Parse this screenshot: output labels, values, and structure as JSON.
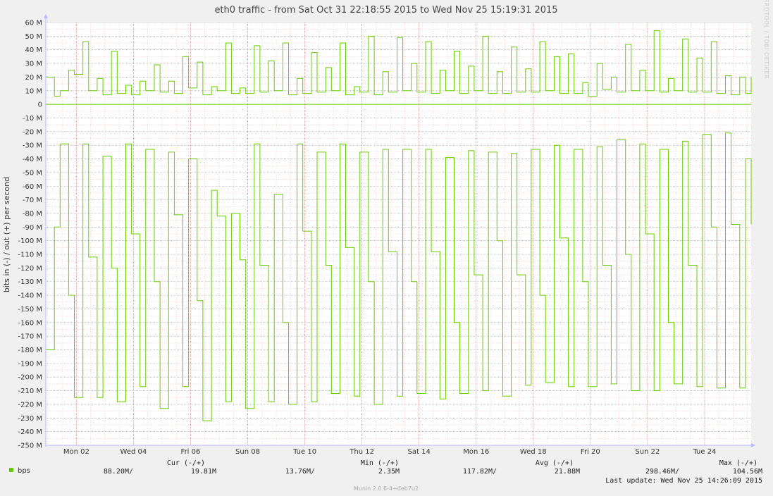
{
  "chart_data": {
    "type": "line",
    "title": "eth0 traffic - from Sat Oct 31 22:18:55 2015 to Wed Nov 25 15:19:31 2015",
    "ylabel": "bits in (-) / out (+) per second",
    "ylim": [
      -250000000,
      60000000
    ],
    "y_ticks": [
      "60 M",
      "50 M",
      "40 M",
      "30 M",
      "20 M",
      "10 M",
      "0",
      "-10 M",
      "-20 M",
      "-30 M",
      "-40 M",
      "-50 M",
      "-60 M",
      "-70 M",
      "-80 M",
      "-90 M",
      "-100 M",
      "-110 M",
      "-120 M",
      "-130 M",
      "-140 M",
      "-150 M",
      "-160 M",
      "-170 M",
      "-180 M",
      "-190 M",
      "-200 M",
      "-210 M",
      "-220 M",
      "-230 M",
      "-240 M",
      "-250 M"
    ],
    "x_ticks": [
      "Mon 02",
      "Wed 04",
      "Fri 06",
      "Sun 08",
      "Tue 10",
      "Thu 12",
      "Sat 14",
      "Mon 16",
      "Wed 18",
      "Fri 20",
      "Sun 22",
      "Tue 24"
    ],
    "grid": true,
    "colors": {
      "series": "#66cc00",
      "grid_minor": "#f4b3b3",
      "grid_major": "#e08a8a",
      "background": "#ffffff",
      "page": "#f0f0f0"
    },
    "x_unit": "days since Sat Oct 31 22:18:55 2015",
    "series": [
      {
        "name": "bps",
        "direction": "out (+)",
        "x": [
          0.0,
          0.3,
          0.5,
          0.8,
          1.0,
          1.3,
          1.5,
          1.8,
          2.0,
          2.3,
          2.5,
          2.8,
          3.0,
          3.3,
          3.5,
          3.8,
          4.0,
          4.3,
          4.5,
          4.8,
          5.0,
          5.3,
          5.5,
          5.8,
          6.0,
          6.3,
          6.5,
          6.8,
          7.0,
          7.3,
          7.5,
          7.8,
          8.0,
          8.3,
          8.5,
          8.8,
          9.0,
          9.3,
          9.5,
          9.8,
          10.0,
          10.3,
          10.5,
          10.8,
          11.0,
          11.3,
          11.5,
          11.8,
          12.0,
          12.3,
          12.5,
          12.8,
          13.0,
          13.3,
          13.5,
          13.8,
          14.0,
          14.3,
          14.5,
          14.8,
          15.0,
          15.3,
          15.5,
          15.8,
          16.0,
          16.3,
          16.5,
          16.8,
          17.0,
          17.3,
          17.5,
          17.8,
          18.0,
          18.3,
          18.5,
          18.8,
          19.0,
          19.3,
          19.5,
          19.8,
          20.0,
          20.3,
          20.5,
          20.8,
          21.0,
          21.3,
          21.5,
          21.8,
          22.0,
          22.3,
          22.5,
          22.8,
          23.0,
          23.3,
          23.5,
          23.8,
          24.0,
          24.3,
          24.5,
          24.7
        ],
        "y": [
          20,
          6,
          10,
          25,
          22,
          46,
          10,
          19,
          7,
          39,
          8,
          14,
          7,
          17,
          10,
          29,
          9,
          17,
          8,
          35,
          12,
          31,
          7,
          13,
          10,
          45,
          8,
          12,
          8,
          43,
          9,
          32,
          10,
          45,
          7,
          19,
          8,
          38,
          9,
          27,
          10,
          45,
          7,
          13,
          9,
          50,
          7,
          24,
          9,
          49,
          10,
          30,
          9,
          46,
          8,
          25,
          10,
          39,
          8,
          28,
          10,
          50,
          8,
          24,
          8,
          42,
          9,
          26,
          9,
          46,
          10,
          35,
          8,
          37,
          8,
          16,
          6,
          30,
          11,
          20,
          9,
          44,
          10,
          25,
          10,
          54,
          9,
          19,
          10,
          48,
          9,
          34,
          9,
          46,
          8,
          21,
          7,
          20,
          8,
          20
        ]
      },
      {
        "name": "bps",
        "direction": "in (-)",
        "x": [
          0.0,
          0.3,
          0.5,
          0.8,
          1.0,
          1.3,
          1.5,
          1.8,
          2.0,
          2.3,
          2.5,
          2.8,
          3.0,
          3.3,
          3.5,
          3.8,
          4.0,
          4.3,
          4.5,
          4.8,
          5.0,
          5.3,
          5.5,
          5.8,
          6.0,
          6.3,
          6.5,
          6.8,
          7.0,
          7.3,
          7.5,
          7.8,
          8.0,
          8.3,
          8.5,
          8.8,
          9.0,
          9.3,
          9.5,
          9.8,
          10.0,
          10.3,
          10.5,
          10.8,
          11.0,
          11.3,
          11.5,
          11.8,
          12.0,
          12.3,
          12.5,
          12.8,
          13.0,
          13.3,
          13.5,
          13.8,
          14.0,
          14.3,
          14.5,
          14.8,
          15.0,
          15.3,
          15.5,
          15.8,
          16.0,
          16.3,
          16.5,
          16.8,
          17.0,
          17.3,
          17.5,
          17.8,
          18.0,
          18.3,
          18.5,
          18.8,
          19.0,
          19.3,
          19.5,
          19.8,
          20.0,
          20.3,
          20.5,
          20.8,
          21.0,
          21.3,
          21.5,
          21.8,
          22.0,
          22.3,
          22.5,
          22.8,
          23.0,
          23.3,
          23.5,
          23.8,
          24.0,
          24.3,
          24.5,
          24.7
        ],
        "y": [
          -180,
          -90,
          -29,
          -140,
          -215,
          -29,
          -112,
          -215,
          -38,
          -120,
          -218,
          -29,
          -95,
          -207,
          -33,
          -130,
          -223,
          -35,
          -81,
          -207,
          -40,
          -144,
          -232,
          -63,
          -82,
          -218,
          -80,
          -114,
          -223,
          -29,
          -118,
          -218,
          -66,
          -160,
          -220,
          -29,
          -93,
          -218,
          -35,
          -118,
          -212,
          -29,
          -105,
          -214,
          -35,
          -130,
          -220,
          -33,
          -108,
          -214,
          -33,
          -130,
          -212,
          -33,
          -108,
          -216,
          -39,
          -160,
          -212,
          -34,
          -125,
          -210,
          -35,
          -100,
          -214,
          -36,
          -125,
          -206,
          -33,
          -140,
          -204,
          -30,
          -98,
          -207,
          -33,
          -130,
          -207,
          -31,
          -118,
          -205,
          -26,
          -110,
          -210,
          -29,
          -95,
          -210,
          -33,
          -160,
          -205,
          -27,
          -118,
          -207,
          -22,
          -90,
          -208,
          -21,
          -88,
          -208,
          -40,
          -88
        ]
      }
    ]
  },
  "legend": {
    "series_label": "bps",
    "headers": {
      "cur": "Cur (-/+)",
      "min": "Min (-/+)",
      "avg": "Avg (-/+)",
      "max": "Max (-/+)"
    },
    "values": {
      "cur_in": "88.20M/",
      "cur_out": "19.81M",
      "min_in": "13.76M/",
      "min_out": "2.35M",
      "avg_in": "117.82M/",
      "avg_out": "21.88M",
      "max_in": "298.46M/",
      "max_out": "104.56M"
    },
    "last_update": "Last update: Wed Nov 25 14:26:09 2015"
  },
  "watermark": "RRDTOOL / TOBI OETIKER",
  "footer": "Munin 2.0.6-4+deb7u2"
}
